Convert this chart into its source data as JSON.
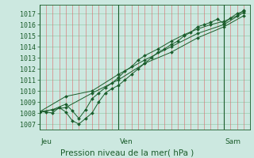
{
  "title": "",
  "xlabel": "Pression niveau de la mer( hPa )",
  "bg_color": "#cce8e0",
  "line_color": "#1a5c2a",
  "red_grid_color": "#dd6666",
  "green_grid_color": "#99ccb0",
  "dark_line_color": "#2d7a3a",
  "ylim": [
    1006.5,
    1017.8
  ],
  "xlim": [
    0,
    96
  ],
  "yticks": [
    1007,
    1008,
    1009,
    1010,
    1011,
    1012,
    1013,
    1014,
    1015,
    1016,
    1017
  ],
  "day_positions": [
    0,
    36,
    84
  ],
  "day_labels": [
    "Jeu",
    "Ven",
    "Sam"
  ],
  "series": [
    [
      0,
      1008.1,
      3,
      1008.1,
      6,
      1008.0,
      9,
      1008.5,
      12,
      1008.1,
      15,
      1007.3,
      18,
      1007.0,
      21,
      1007.5,
      24,
      1008.0,
      27,
      1009.0,
      30,
      1009.8,
      33,
      1010.2,
      36,
      1010.5,
      39,
      1011.0,
      42,
      1011.5,
      45,
      1012.0,
      48,
      1012.5,
      51,
      1013.0,
      54,
      1013.5,
      57,
      1013.8,
      60,
      1014.2,
      63,
      1014.5,
      66,
      1015.0,
      69,
      1015.3,
      72,
      1015.8,
      75,
      1016.0,
      78,
      1016.2,
      81,
      1016.5,
      84,
      1016.1,
      87,
      1016.6,
      90,
      1017.0,
      93,
      1017.2
    ],
    [
      0,
      1008.1,
      6,
      1008.3,
      12,
      1008.8,
      15,
      1008.2,
      18,
      1007.5,
      21,
      1008.3,
      24,
      1009.3,
      27,
      1009.8,
      30,
      1010.3,
      33,
      1010.7,
      36,
      1011.2,
      39,
      1011.8,
      42,
      1012.2,
      45,
      1012.8,
      48,
      1013.2,
      54,
      1013.8,
      60,
      1014.5,
      66,
      1015.1,
      72,
      1015.6,
      78,
      1016.0,
      84,
      1016.3,
      90,
      1016.8,
      93,
      1017.3
    ],
    [
      0,
      1008.1,
      12,
      1009.5,
      24,
      1010.0,
      36,
      1011.5,
      48,
      1012.8,
      60,
      1014.0,
      72,
      1015.2,
      84,
      1016.0,
      93,
      1017.1
    ],
    [
      0,
      1008.1,
      12,
      1008.5,
      24,
      1009.8,
      36,
      1011.0,
      48,
      1012.5,
      60,
      1013.5,
      72,
      1014.8,
      84,
      1015.8,
      93,
      1016.8
    ]
  ]
}
